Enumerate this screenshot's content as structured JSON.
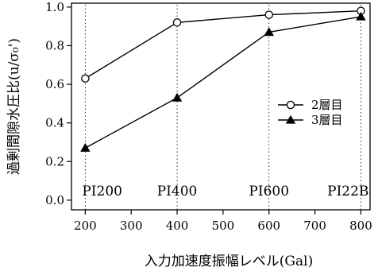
{
  "chart_data": {
    "type": "line",
    "title": "",
    "xlabel": "入力加速度振幅レベル(Gal)",
    "ylabel": "過剰間隙水圧比(u/σ₀')",
    "xlim": [
      170,
      820
    ],
    "ylim": [
      -0.05,
      1.02
    ],
    "xticks": [
      200,
      300,
      400,
      500,
      600,
      700,
      800
    ],
    "yticks": [
      0.0,
      0.2,
      0.4,
      0.6,
      0.8,
      1.0
    ],
    "x": [
      200,
      400,
      600,
      800
    ],
    "point_labels": [
      "PI200",
      "PI400",
      "PI600",
      "PI22B"
    ],
    "grid": false,
    "legend_position": "center-right",
    "series": [
      {
        "name": "2層目",
        "marker": "open-circle",
        "values": [
          0.63,
          0.92,
          0.96,
          0.98
        ]
      },
      {
        "name": "3層目",
        "marker": "filled-triangle",
        "values": [
          0.27,
          0.53,
          0.87,
          0.95
        ]
      }
    ]
  }
}
